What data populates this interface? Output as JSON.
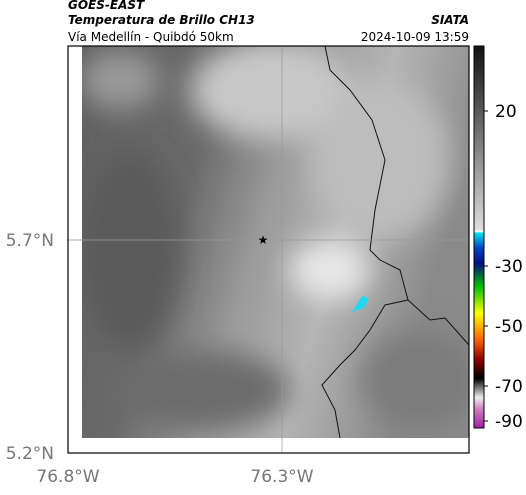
{
  "header": {
    "source": "GOES-EAST",
    "title": "Temperatura de Brillo CH13",
    "subtitle": "Vía Medellín - Quibdó 50km",
    "agency": "SIATA",
    "timestamp": "2024-10-09 13:59"
  },
  "map": {
    "lat_labels": [
      "5.7°N",
      "5.2°N"
    ],
    "lon_labels": [
      "76.8°W",
      "76.3°W"
    ]
  },
  "colorbar": {
    "labels": [
      "20",
      "-30",
      "-50",
      "-70",
      "-90"
    ]
  }
}
